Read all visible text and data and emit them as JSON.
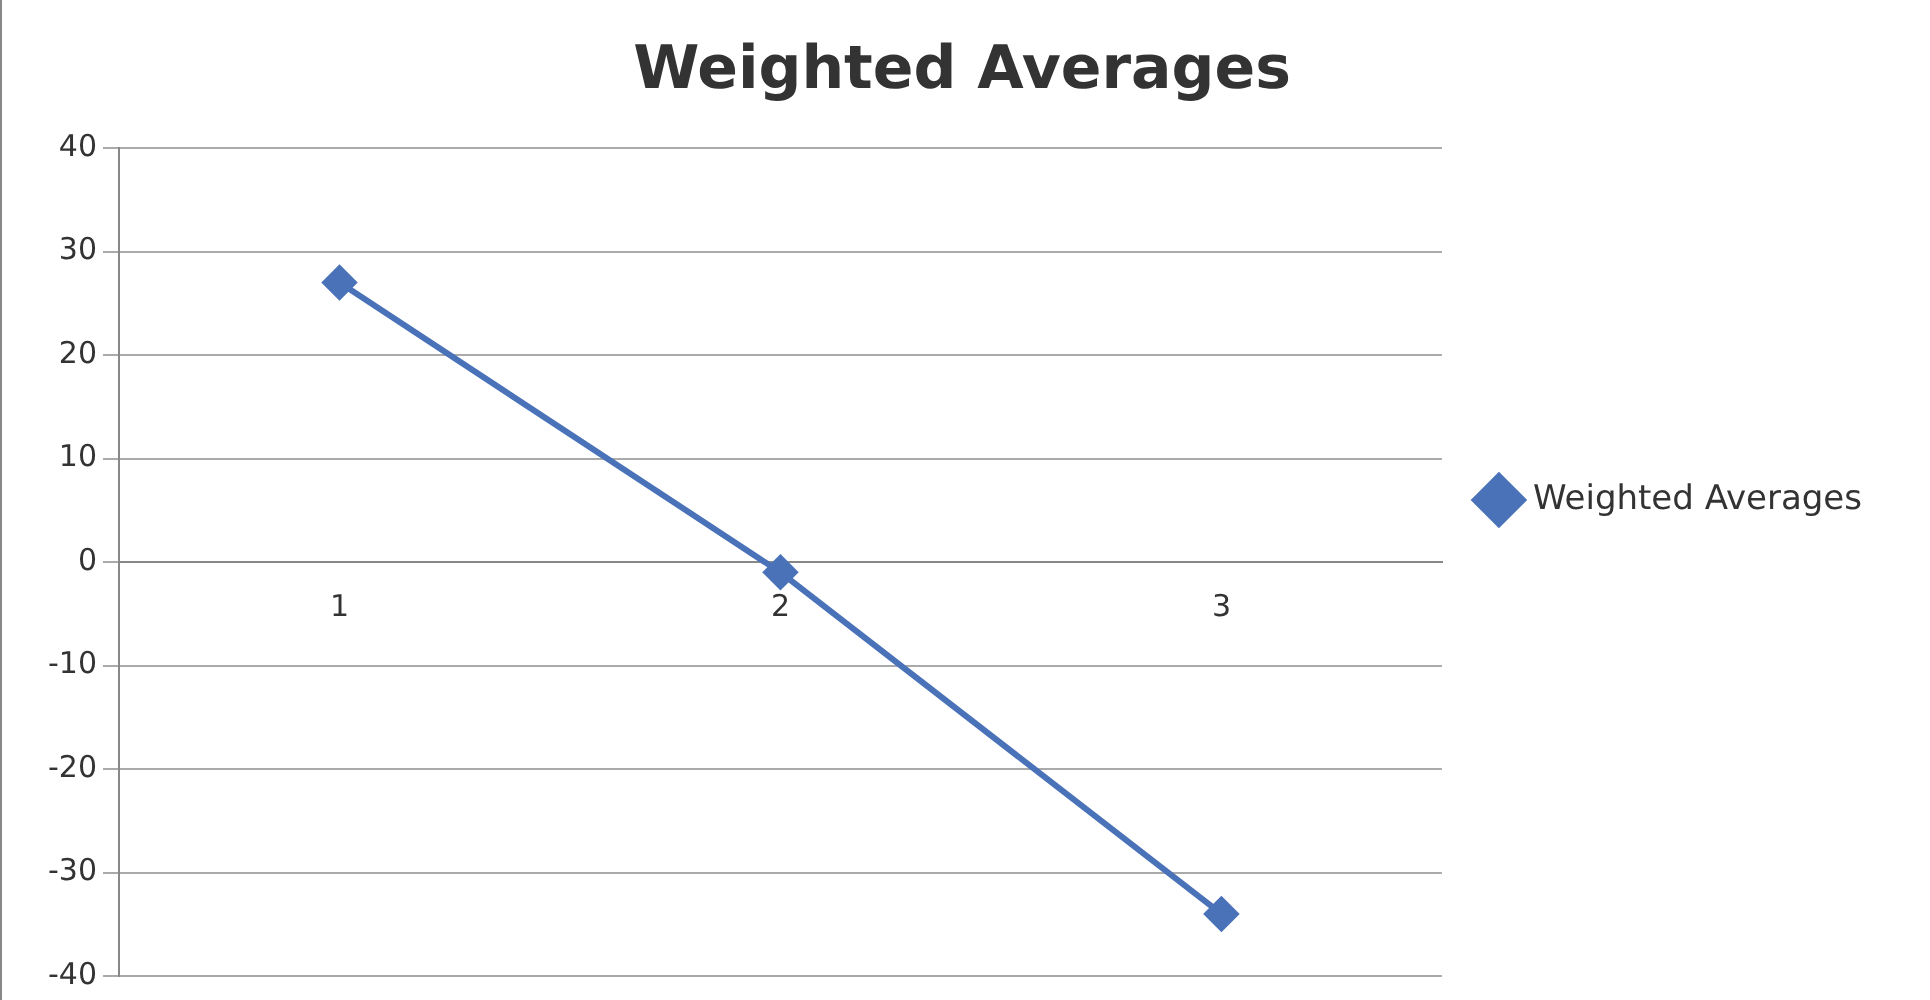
{
  "chart_data": {
    "type": "line",
    "title": "Weighted Averages",
    "categories": [
      "1",
      "2",
      "3"
    ],
    "series": [
      {
        "name": "Weighted Averages",
        "color": "#4a72b8",
        "values": [
          27,
          -1,
          -34
        ]
      }
    ],
    "ylim": [
      -40,
      40
    ],
    "yticks": [
      -40,
      -30,
      -20,
      -10,
      0,
      10,
      20,
      30,
      40
    ],
    "grid": "y",
    "legend": "right",
    "marker": "diamond",
    "line_style": "solid"
  }
}
